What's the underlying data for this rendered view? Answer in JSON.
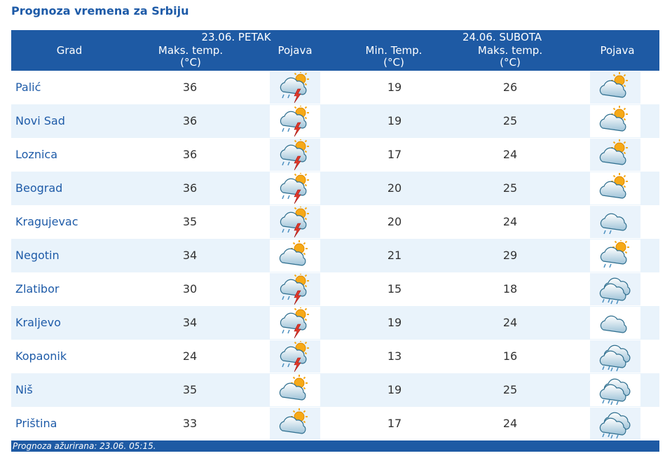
{
  "page_title": "Prognoza vremena za Srbiju",
  "header": {
    "city_col": "Grad",
    "day1_label": "23.06. PETAK",
    "day1_max_line1": "Maks. temp.",
    "day1_max_line2": "(°C)",
    "day1_icon": "Pojava",
    "day2_label": "24.06. SUBOTA",
    "day2_min_line1": "Min. Temp.",
    "day2_min_line2": "(°C)",
    "day2_max_line1": "Maks. temp.",
    "day2_max_line2": "(°C)",
    "day2_icon": "Pojava"
  },
  "rows": [
    {
      "city": "Palić",
      "d1_max": "36",
      "d1_icon": "thunderstorm-icon",
      "d2_min": "19",
      "d2_max": "26",
      "d2_icon": "partly-cloudy-icon"
    },
    {
      "city": "Novi Sad",
      "d1_max": "36",
      "d1_icon": "thunderstorm-icon",
      "d2_min": "19",
      "d2_max": "25",
      "d2_icon": "partly-cloudy-icon"
    },
    {
      "city": "Loznica",
      "d1_max": "36",
      "d1_icon": "thunderstorm-icon",
      "d2_min": "17",
      "d2_max": "24",
      "d2_icon": "partly-cloudy-icon"
    },
    {
      "city": "Beograd",
      "d1_max": "36",
      "d1_icon": "thunderstorm-icon",
      "d2_min": "20",
      "d2_max": "25",
      "d2_icon": "partly-cloudy-icon"
    },
    {
      "city": "Kragujevac",
      "d1_max": "35",
      "d1_icon": "thunderstorm-icon",
      "d2_min": "20",
      "d2_max": "24",
      "d2_icon": "light-rain-icon"
    },
    {
      "city": "Negotin",
      "d1_max": "34",
      "d1_icon": "partly-cloudy-icon",
      "d2_min": "21",
      "d2_max": "29",
      "d2_icon": "sun-cloud-rain-icon"
    },
    {
      "city": "Zlatibor",
      "d1_max": "30",
      "d1_icon": "thunderstorm-icon",
      "d2_min": "15",
      "d2_max": "18",
      "d2_icon": "rain-showers-icon"
    },
    {
      "city": "Kraljevo",
      "d1_max": "34",
      "d1_icon": "thunderstorm-icon",
      "d2_min": "19",
      "d2_max": "24",
      "d2_icon": "cloudy-icon"
    },
    {
      "city": "Kopaonik",
      "d1_max": "24",
      "d1_icon": "thunderstorm-icon",
      "d2_min": "13",
      "d2_max": "16",
      "d2_icon": "rain-showers-icon"
    },
    {
      "city": "Niš",
      "d1_max": "35",
      "d1_icon": "partly-cloudy-icon",
      "d2_min": "19",
      "d2_max": "25",
      "d2_icon": "rain-showers-icon"
    },
    {
      "city": "Priština",
      "d1_max": "33",
      "d1_icon": "partly-cloudy-icon",
      "d2_min": "17",
      "d2_max": "24",
      "d2_icon": "rain-showers-icon"
    }
  ],
  "footer": "Prognoza ažurirana:  23.06. 05:15."
}
